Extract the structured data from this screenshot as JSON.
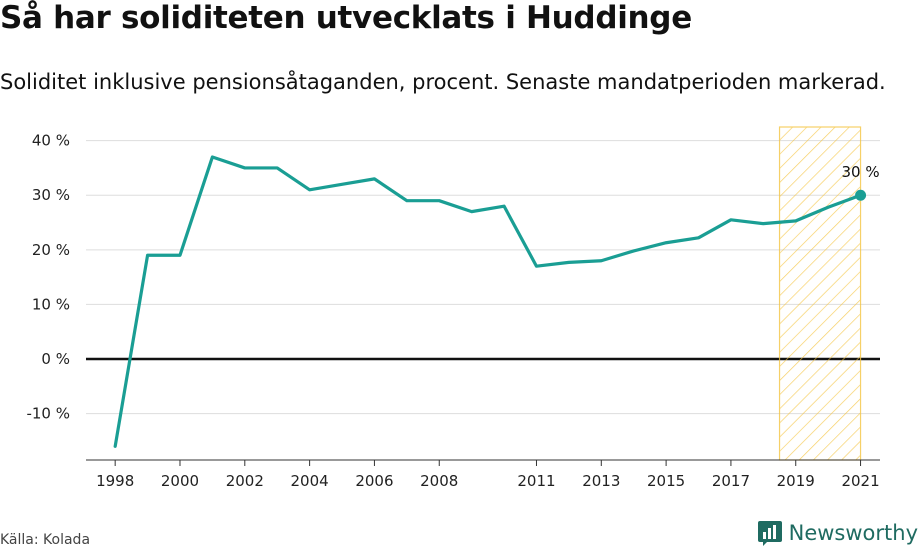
{
  "title": "Så har soliditeten utvecklats i Huddinge",
  "subtitle": "Soliditet inklusive pensionsåtaganden, procent. Senaste mandatperioden markerad.",
  "source": "Källa: Kolada",
  "brand": {
    "name": "Newsworthy",
    "icon": "newsworthy-logo-icon",
    "color": "#1f6b61"
  },
  "colors": {
    "line": "#1a9e94",
    "highlight": "#f5c542",
    "zero_line": "#111111",
    "grid": "#dddddd"
  },
  "chart_data": {
    "type": "line",
    "title": "Så har soliditeten utvecklats i Huddinge",
    "subtitle": "Soliditet inklusive pensionsåtaganden, procent. Senaste mandatperioden markerad.",
    "xlabel": "",
    "ylabel": "",
    "x": [
      1998,
      1999,
      2000,
      2001,
      2002,
      2003,
      2004,
      2005,
      2006,
      2007,
      2008,
      2009,
      2010,
      2011,
      2012,
      2013,
      2014,
      2015,
      2016,
      2017,
      2018,
      2019,
      2020,
      2021
    ],
    "series": [
      {
        "values": [
          -16,
          19,
          19,
          37,
          35,
          35,
          31,
          32,
          33,
          29,
          29,
          27,
          28,
          17,
          17.7,
          18,
          19.8,
          21.3,
          22.2,
          25.5,
          24.8,
          25.3,
          27.8,
          30
        ]
      }
    ],
    "xlim": [
      1997.1,
      2021.6
    ],
    "ylim": [
      -18.5,
      42.5
    ],
    "x_ticks": [
      1998,
      2000,
      2002,
      2004,
      2006,
      2008,
      2011,
      2013,
      2015,
      2017,
      2019,
      2021
    ],
    "x_tick_labels": [
      "1998",
      "2000",
      "2002",
      "2004",
      "2006",
      "2008",
      "2011",
      "2013",
      "2015",
      "2017",
      "2019",
      "2021"
    ],
    "y_ticks": [
      -10,
      0,
      10,
      20,
      30,
      40
    ],
    "y_tick_labels": [
      "-10 %",
      "0 %",
      "10 %",
      "20 %",
      "30 %",
      "40 %"
    ],
    "highlight_range": [
      2018.5,
      2021
    ],
    "annotation": {
      "x": 2021,
      "y": 30,
      "text": "30 %"
    },
    "grid": true,
    "legend": "none"
  }
}
